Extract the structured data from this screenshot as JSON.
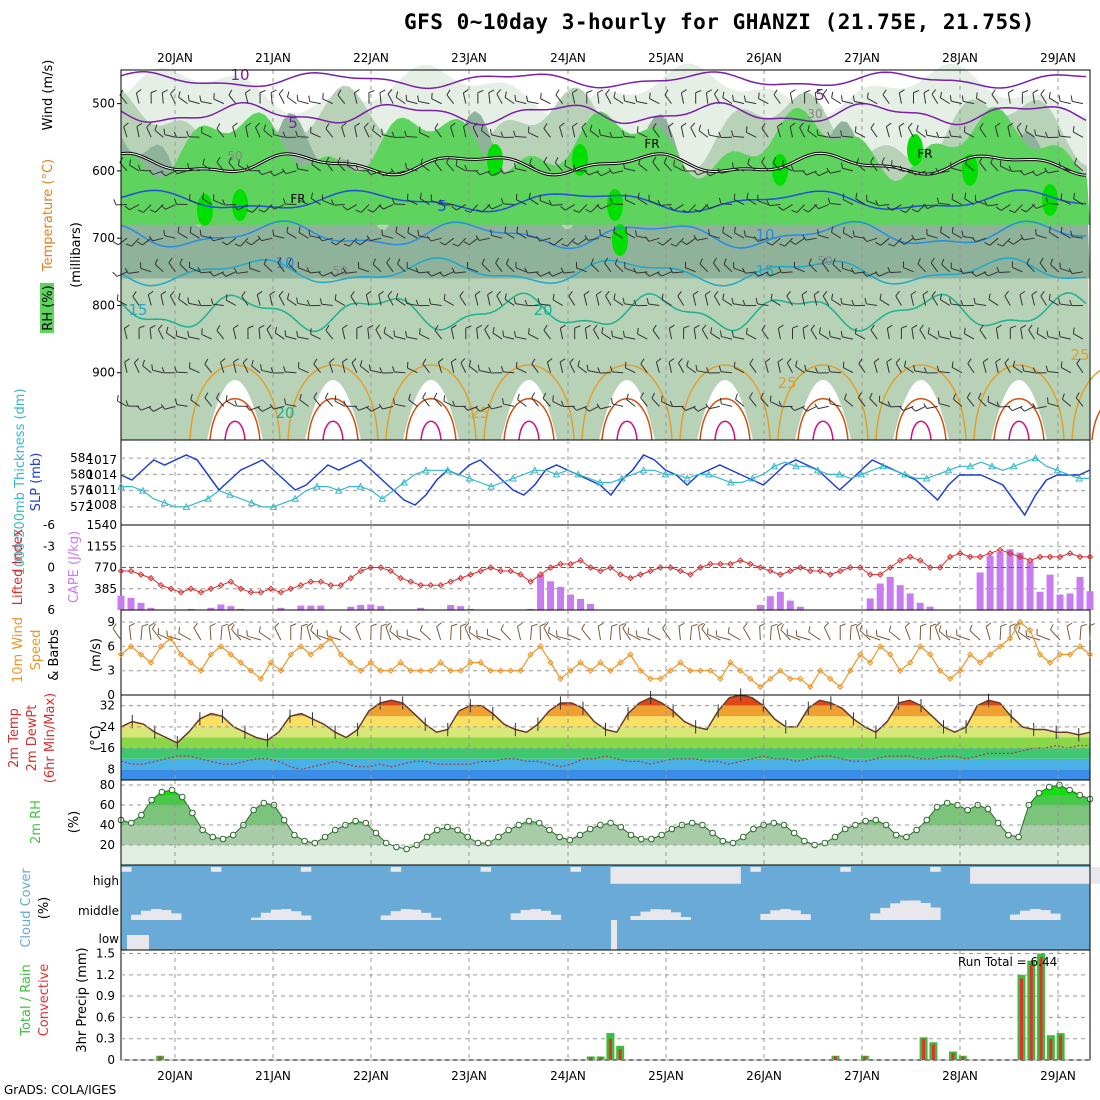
{
  "title": "GFS 0~10day 3-hourly for GHANZI (21.75E, 21.75S)",
  "credit": "GrADS: COLA/IGES",
  "colors": {
    "rh_light": "#e6efe6",
    "rh_mid": "#b8d2b8",
    "rh_dark": "#8fb39a",
    "rh_green": "#5ed35e",
    "rh_bright": "#00e000",
    "slp": "#1f3fd6",
    "thickness": "#36b8c8",
    "lifted_index": "#d43030",
    "cape": "#c87cf0",
    "wind_speed": "#e8962c",
    "wind_barb": "#7a5a3a",
    "rh2m": "#48c048",
    "cloud": "#6aaad6",
    "cloud_gap": "#e8e8ec",
    "precip_total": "#3cbd3c",
    "precip_conv": "#e03030"
  },
  "chart_data": [
    {
      "type": "heatmap",
      "name": "upper-air",
      "xlabel_top": [
        "20JAN",
        "21JAN",
        "22JAN",
        "23JAN",
        "24JAN",
        "25JAN",
        "26JAN",
        "27JAN",
        "28JAN",
        "29JAN"
      ],
      "ylabel": "(millibars)",
      "ylabel_parts": [
        "Wind (m/s)",
        "Temperature (°C)",
        "RH (%)"
      ],
      "yticks": [
        500,
        600,
        700,
        800,
        900
      ],
      "ylim": [
        1000,
        450
      ],
      "temperature_contours_c": [
        -10,
        -5,
        0,
        5,
        10,
        15,
        20,
        25
      ],
      "freezing_label": "FR",
      "contour_labels": [
        "10",
        "5",
        "5",
        "FR",
        "FR",
        "FR",
        "5",
        "10",
        "10",
        "15",
        "15",
        "20",
        "20",
        "25",
        "25",
        "25",
        "50",
        "50",
        "50",
        "30"
      ]
    },
    {
      "type": "line",
      "name": "slp-thickness",
      "ylabel_left": "1000-500mb Thickness (dm)",
      "ylabel_right": "SLP (mb)",
      "yticks_left": [
        572,
        576,
        580,
        584
      ],
      "yticks_right": [
        1008,
        1011,
        1014,
        1017
      ],
      "bottom_label": "1540",
      "series": [
        {
          "name": "SLP (mb)",
          "values": [
            1014,
            1013,
            1015,
            1017,
            1016,
            1017,
            1018,
            1017,
            1014,
            1011,
            1013,
            1015,
            1016,
            1017,
            1015,
            1013,
            1011,
            1012,
            1014,
            1016,
            1015,
            1016,
            1017,
            1015,
            1013,
            1011,
            1009,
            1008,
            1010,
            1013,
            1015,
            1014,
            1016,
            1017,
            1015,
            1013,
            1011,
            1010,
            1012,
            1015,
            1016,
            1015,
            1014,
            1013,
            1012,
            1010,
            1013,
            1015,
            1018,
            1017,
            1015,
            1014,
            1012,
            1014,
            1015,
            1016,
            1015,
            1014,
            1013,
            1012,
            1014,
            1016,
            1017,
            1016,
            1015,
            1013,
            1011,
            1013,
            1015,
            1017,
            1016,
            1015,
            1014,
            1013,
            1011,
            1009,
            1012,
            1014,
            1014,
            1014,
            1013,
            1012,
            1009,
            1006,
            1010,
            1013,
            1014,
            1014,
            1014,
            1015
          ]
        },
        {
          "name": "1000-500mb Thickness (dm)",
          "values": [
            577,
            577,
            576,
            574,
            573,
            572,
            572,
            573,
            574,
            576,
            575,
            574,
            573,
            572,
            572,
            573,
            574,
            576,
            577,
            577,
            576,
            577,
            577,
            576,
            574,
            576,
            578,
            580,
            581,
            581,
            581,
            580,
            579,
            578,
            577,
            578,
            579,
            580,
            581,
            581,
            580,
            581,
            580,
            579,
            578,
            578,
            579,
            580,
            581,
            581,
            580,
            580,
            579,
            580,
            580,
            579,
            578,
            578,
            579,
            580,
            582,
            583,
            582,
            582,
            581,
            580,
            580,
            579,
            580,
            581,
            582,
            581,
            580,
            579,
            579,
            580,
            581,
            582,
            582,
            583,
            582,
            581,
            582,
            583,
            584,
            582,
            581,
            580,
            579,
            579
          ]
        }
      ]
    },
    {
      "type": "bar",
      "name": "cape-li",
      "ylabel_left": "Lifted Index",
      "ylabel_right": "CAPE (J/kg)",
      "yticks_left": [
        -6,
        -3,
        0,
        3,
        6
      ],
      "yticks_right": [
        385,
        770,
        1155
      ],
      "series": [
        {
          "name": "CAPE (J/kg)",
          "values": [
            260,
            220,
            130,
            40,
            10,
            0,
            0,
            20,
            0,
            40,
            100,
            70,
            20,
            0,
            0,
            0,
            40,
            0,
            80,
            80,
            80,
            0,
            0,
            60,
            90,
            100,
            70,
            10,
            0,
            0,
            40,
            0,
            0,
            90,
            70,
            20,
            0,
            0,
            0,
            0,
            0,
            20,
            640,
            520,
            420,
            280,
            200,
            110,
            0,
            0,
            0,
            0,
            0,
            0,
            0,
            0,
            0,
            0,
            0,
            0,
            0,
            0,
            0,
            0,
            90,
            250,
            330,
            170,
            60,
            0,
            0,
            0,
            0,
            0,
            0,
            210,
            480,
            600,
            450,
            300,
            130,
            60,
            0,
            0,
            0,
            0,
            680,
            980,
            1050,
            1100,
            1040,
            880,
            330,
            640,
            280,
            300,
            600,
            340
          ]
        },
        {
          "name": "Lifted Index",
          "values": [
            0.5,
            0.5,
            1.0,
            1.5,
            2.5,
            3.0,
            3.5,
            3.0,
            3.5,
            3.0,
            2.5,
            2.0,
            3.0,
            3.5,
            3.5,
            3.0,
            3.5,
            3.0,
            2.5,
            2.0,
            2.0,
            2.5,
            2.5,
            1.5,
            0.5,
            0.0,
            0.0,
            0.5,
            1.5,
            2.0,
            2.5,
            2.5,
            2.5,
            2.0,
            1.5,
            1.0,
            0.5,
            0.0,
            0.5,
            0.5,
            1.0,
            2.0,
            1.0,
            0.0,
            -0.5,
            -0.5,
            -1.0,
            0.0,
            0.5,
            0.0,
            1.0,
            1.5,
            1.0,
            0.5,
            0.0,
            0.0,
            0.5,
            1.0,
            0.0,
            -0.5,
            -0.5,
            -0.5,
            -1.0,
            -0.5,
            0.0,
            0.5,
            1.0,
            0.5,
            0.0,
            0.5,
            0.5,
            1.0,
            0.5,
            0.0,
            0.0,
            1.0,
            1.0,
            0.0,
            -1.0,
            -1.5,
            -1.0,
            0.0,
            0.0,
            -1.5,
            -2.0,
            -1.5,
            -1.5,
            -2.0,
            -2.5,
            -2.0,
            -1.5,
            -1.0,
            -1.5,
            -1.5,
            -1.5,
            -2.0,
            -1.5,
            -1.5
          ]
        }
      ]
    },
    {
      "type": "line",
      "name": "wind10m",
      "ylabel": "10m Wind Speed & Barbs",
      "ylabel_right": "(m/s)",
      "yticks": [
        0,
        3,
        6,
        9
      ],
      "series": [
        {
          "name": "10m Wind Speed (m/s)",
          "values": [
            5,
            6,
            5,
            4,
            6,
            7,
            5,
            4,
            3,
            5,
            6,
            5,
            4,
            3,
            2,
            4,
            3,
            5,
            6,
            5,
            6,
            7,
            5,
            4,
            3,
            4,
            3,
            3,
            4,
            3,
            3,
            3,
            4,
            3,
            3,
            4,
            4,
            3,
            3,
            3,
            3,
            5,
            6,
            4,
            2,
            3,
            4,
            3,
            4,
            3,
            4,
            5,
            3,
            2,
            2,
            3,
            4,
            3,
            3,
            3,
            2,
            4,
            3,
            2,
            1,
            2,
            3,
            2,
            2,
            1,
            3,
            2,
            1,
            3,
            5,
            4,
            6,
            5,
            3,
            4,
            6,
            5,
            3,
            2,
            3,
            5,
            4,
            5,
            6,
            7,
            9,
            8,
            5,
            4,
            5,
            5,
            6,
            5
          ]
        }
      ]
    },
    {
      "type": "area",
      "name": "temp2m",
      "ylabel": "2m Temp / 2m DewPt / (6hr Min/Max)",
      "ylabel_right": "(°C)",
      "yticks": [
        8,
        16,
        24,
        32
      ],
      "series": [
        {
          "name": "2m Temp (°C)",
          "values": [
            24,
            26,
            25,
            22,
            20,
            18,
            22,
            27,
            29,
            28,
            24,
            22,
            20,
            19,
            22,
            28,
            29,
            27,
            25,
            22,
            20,
            23,
            30,
            33,
            34,
            33,
            29,
            25,
            22,
            23,
            30,
            32,
            32,
            29,
            25,
            23,
            22,
            25,
            30,
            33,
            33,
            31,
            26,
            23,
            22,
            29,
            33,
            35,
            33,
            30,
            26,
            24,
            23,
            30,
            35,
            36,
            35,
            32,
            27,
            24,
            24,
            31,
            34,
            33,
            31,
            27,
            24,
            22,
            26,
            33,
            34,
            32,
            28,
            24,
            22,
            24,
            32,
            34,
            33,
            28,
            24,
            23,
            23,
            22,
            22,
            21,
            22
          ]
        },
        {
          "name": "2m DewPt (°C)",
          "values": [
            11,
            10,
            10,
            11,
            12,
            13,
            13,
            12,
            11,
            10,
            10,
            11,
            12,
            12,
            11,
            9,
            8,
            9,
            10,
            11,
            10,
            9,
            9,
            10,
            9,
            10,
            11,
            11,
            10,
            10,
            10,
            10,
            11,
            11,
            12,
            12,
            11,
            11,
            10,
            9,
            10,
            12,
            12,
            13,
            12,
            11,
            11,
            10,
            11,
            12,
            12,
            12,
            11,
            11,
            10,
            11,
            12,
            13,
            12,
            12,
            11,
            12,
            13,
            13,
            12,
            11,
            11,
            12,
            13,
            13,
            13,
            12,
            12,
            13,
            13,
            12,
            13,
            14,
            14,
            14,
            15,
            16,
            16,
            17,
            16,
            17,
            17
          ]
        }
      ]
    },
    {
      "type": "area",
      "name": "rh2m",
      "ylabel": "2m RH",
      "ylabel_right": "(%)",
      "yticks": [
        20,
        40,
        60,
        80
      ],
      "series": [
        {
          "name": "2m RH (%)",
          "values": [
            45,
            42,
            50,
            65,
            73,
            75,
            68,
            52,
            35,
            28,
            26,
            30,
            40,
            55,
            62,
            60,
            45,
            30,
            24,
            22,
            28,
            35,
            40,
            44,
            42,
            32,
            22,
            18,
            16,
            20,
            28,
            35,
            38,
            35,
            28,
            22,
            22,
            28,
            35,
            40,
            44,
            42,
            35,
            28,
            25,
            30,
            36,
            40,
            42,
            38,
            30,
            26,
            26,
            30,
            36,
            40,
            42,
            40,
            32,
            24,
            22,
            28,
            36,
            40,
            42,
            40,
            32,
            24,
            20,
            22,
            28,
            36,
            40,
            44,
            45,
            40,
            30,
            28,
            35,
            45,
            58,
            62,
            60,
            55,
            60,
            56,
            42,
            30,
            28,
            60,
            72,
            78,
            80,
            75,
            70,
            66
          ]
        }
      ]
    },
    {
      "type": "heatmap",
      "name": "cloud-cover",
      "ylabel": "Cloud Cover",
      "ylabel_right": "(%)",
      "levels": [
        "high",
        "middle",
        "low"
      ]
    },
    {
      "type": "bar",
      "name": "precip",
      "ylabel_left": "Total / Rain",
      "ylabel_left2": "Convective",
      "ylabel_right": "3hr Precip (mm)",
      "yticks": [
        0,
        0.3,
        0.6,
        0.9,
        1.2,
        1.5
      ],
      "run_total_label": "Run Total = 6.44",
      "xlabel_bottom": [
        "20JAN",
        "21JAN",
        "22JAN",
        "23JAN",
        "24JAN",
        "25JAN",
        "26JAN",
        "27JAN",
        "28JAN",
        "29JAN"
      ],
      "series": [
        {
          "name": "Total",
          "values": [
            0,
            0,
            0,
            0,
            0.06,
            0,
            0,
            0,
            0,
            0,
            0,
            0,
            0,
            0,
            0,
            0,
            0,
            0,
            0,
            0,
            0,
            0,
            0,
            0,
            0,
            0,
            0,
            0,
            0,
            0,
            0,
            0,
            0,
            0,
            0,
            0,
            0,
            0,
            0,
            0,
            0,
            0,
            0,
            0,
            0,
            0,
            0,
            0,
            0.05,
            0.05,
            0.38,
            0.2,
            0,
            0,
            0,
            0,
            0,
            0,
            0,
            0,
            0,
            0,
            0,
            0,
            0,
            0,
            0,
            0,
            0,
            0,
            0,
            0,
            0,
            0.06,
            0,
            0,
            0.06,
            0,
            0,
            0,
            0,
            0,
            0.32,
            0.25,
            0,
            0.12,
            0.06,
            0,
            0,
            0,
            0,
            0,
            1.2,
            1.4,
            1.5,
            0.35,
            0.38,
            0,
            0,
            0
          ]
        },
        {
          "name": "Convective",
          "values": [
            0,
            0,
            0,
            0,
            0.05,
            0,
            0,
            0,
            0,
            0,
            0,
            0,
            0,
            0,
            0,
            0,
            0,
            0,
            0,
            0,
            0,
            0,
            0,
            0,
            0,
            0,
            0,
            0,
            0,
            0,
            0,
            0,
            0,
            0,
            0,
            0,
            0,
            0,
            0,
            0,
            0,
            0,
            0,
            0,
            0,
            0,
            0,
            0,
            0.04,
            0.04,
            0.3,
            0.15,
            0,
            0,
            0,
            0,
            0,
            0,
            0,
            0,
            0,
            0,
            0,
            0,
            0,
            0,
            0,
            0,
            0,
            0,
            0,
            0,
            0,
            0.05,
            0,
            0,
            0.05,
            0,
            0,
            0,
            0,
            0,
            0.3,
            0.22,
            0,
            0.1,
            0.05,
            0,
            0,
            0,
            0,
            0,
            1.15,
            1.35,
            1.45,
            0.3,
            0.35,
            0,
            0,
            0
          ]
        }
      ]
    }
  ]
}
